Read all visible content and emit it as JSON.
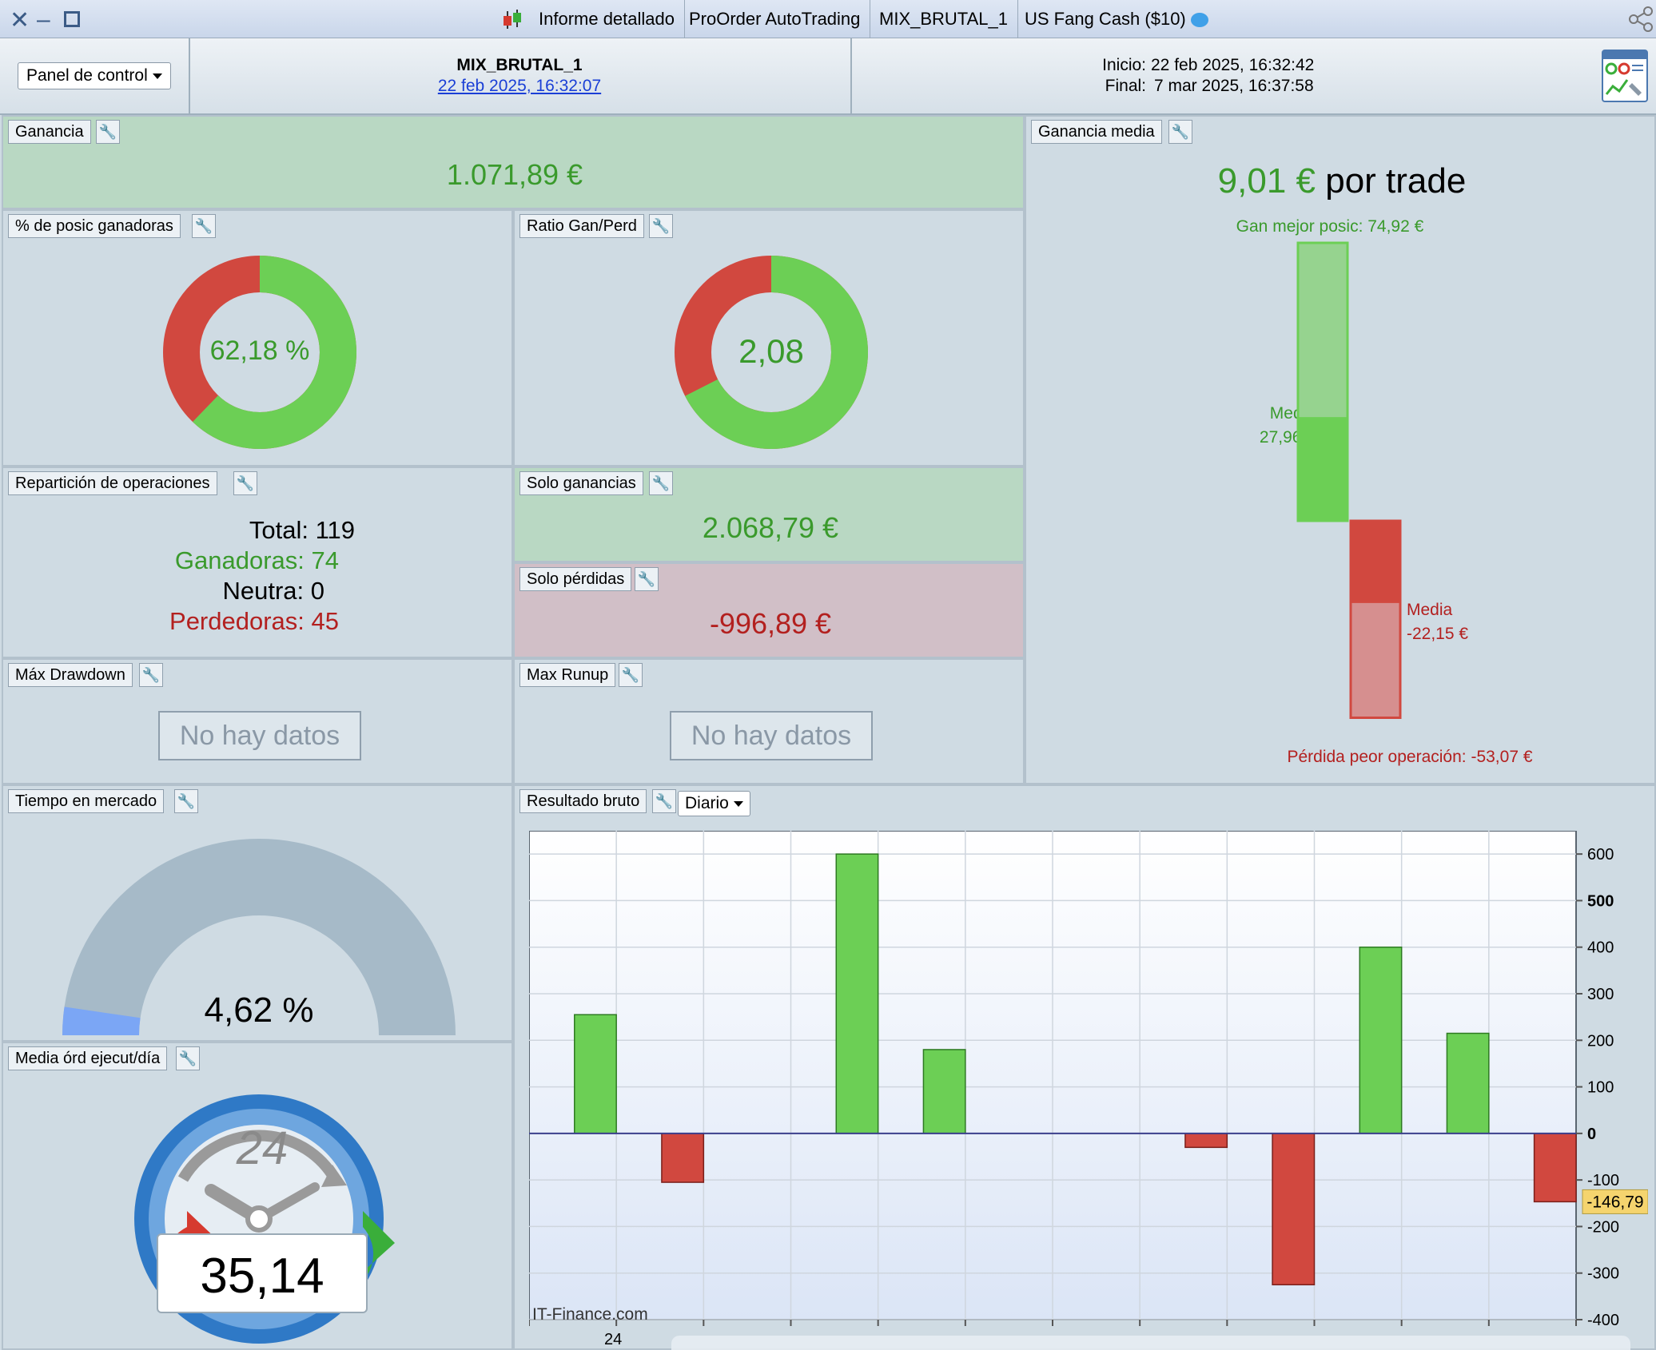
{
  "window": {
    "tabs": [
      {
        "label": "Informe detallado"
      },
      {
        "label": "ProOrder AutoTrading"
      },
      {
        "label": "MIX_BRUTAL_1"
      },
      {
        "label": "US Fang Cash ($10)"
      }
    ]
  },
  "header": {
    "panel_select": "Panel de control",
    "system_name": "MIX_BRUTAL_1",
    "system_date": "22 feb 2025, 16:32:07",
    "start_label": "Inicio:",
    "start_value": "22 feb 2025, 16:32:42",
    "end_label": "Final:",
    "end_value": "7 mar 2025, 16:37:58"
  },
  "ganancia": {
    "title": "Ganancia",
    "value": "1.071,89 €"
  },
  "ganancia_media": {
    "title": "Ganancia media",
    "value": "9,01 €",
    "suffix": "por trade",
    "best_label": "Gan mejor posic: 74,92 €",
    "avg_win_label": "Media",
    "avg_win_value": "27,96 €",
    "avg_loss_label": "Media",
    "avg_loss_value": "-22,15 €",
    "worst_label": "Pérdida peor operación: -53,07 €",
    "best": 74.92,
    "avg_win": 27.96,
    "avg_loss": -22.15,
    "worst": -53.07
  },
  "win_pct": {
    "title": "% de posic ganadoras",
    "value": "62,18 %",
    "fraction": 0.6218
  },
  "ratio": {
    "title": "Ratio Gan/Perd",
    "value": "2,08",
    "fraction": 0.675
  },
  "reparticion": {
    "title": "Repartición de operaciones",
    "total": "Total: 119",
    "ganadoras": "Ganadoras: 74",
    "neutra": "Neutra: 0",
    "perdedoras": "Perdedoras: 45"
  },
  "solo_ganancias": {
    "title": "Solo ganancias",
    "value": "2.068,79 €"
  },
  "solo_perdidas": {
    "title": "Solo pérdidas",
    "value": "-996,89 €"
  },
  "max_drawdown": {
    "title": "Máx Drawdown",
    "nodata": "No hay datos"
  },
  "max_runup": {
    "title": "Max Runup",
    "nodata": "No hay datos"
  },
  "tiempo": {
    "title": "Tiempo en mercado",
    "value": "4,62 %",
    "fraction": 0.0462
  },
  "media_ord": {
    "title": "Media órd ejecut/día",
    "value": "35,14",
    "dial": "24"
  },
  "resultado": {
    "title": "Resultado bruto",
    "period": "Diario"
  },
  "colors": {
    "green": "#6ccf55",
    "red": "#d1483f",
    "gauge": "#a6bac8",
    "gauge_fill": "#7ba6f5"
  },
  "chart_data": {
    "type": "bar",
    "title": "",
    "x_labels": [
      "24"
    ],
    "values": [
      255,
      -105,
      0,
      600,
      180,
      0,
      0,
      -30,
      -325,
      400,
      215,
      -146.79
    ],
    "ylim": [
      -400,
      650
    ],
    "yticks": [
      "600",
      "500",
      "400",
      "300",
      "200",
      "100",
      "0",
      "-100",
      "-200",
      "-300",
      "-400"
    ],
    "current_value_label": "-146,79",
    "watermark": "IT-Finance.com"
  }
}
